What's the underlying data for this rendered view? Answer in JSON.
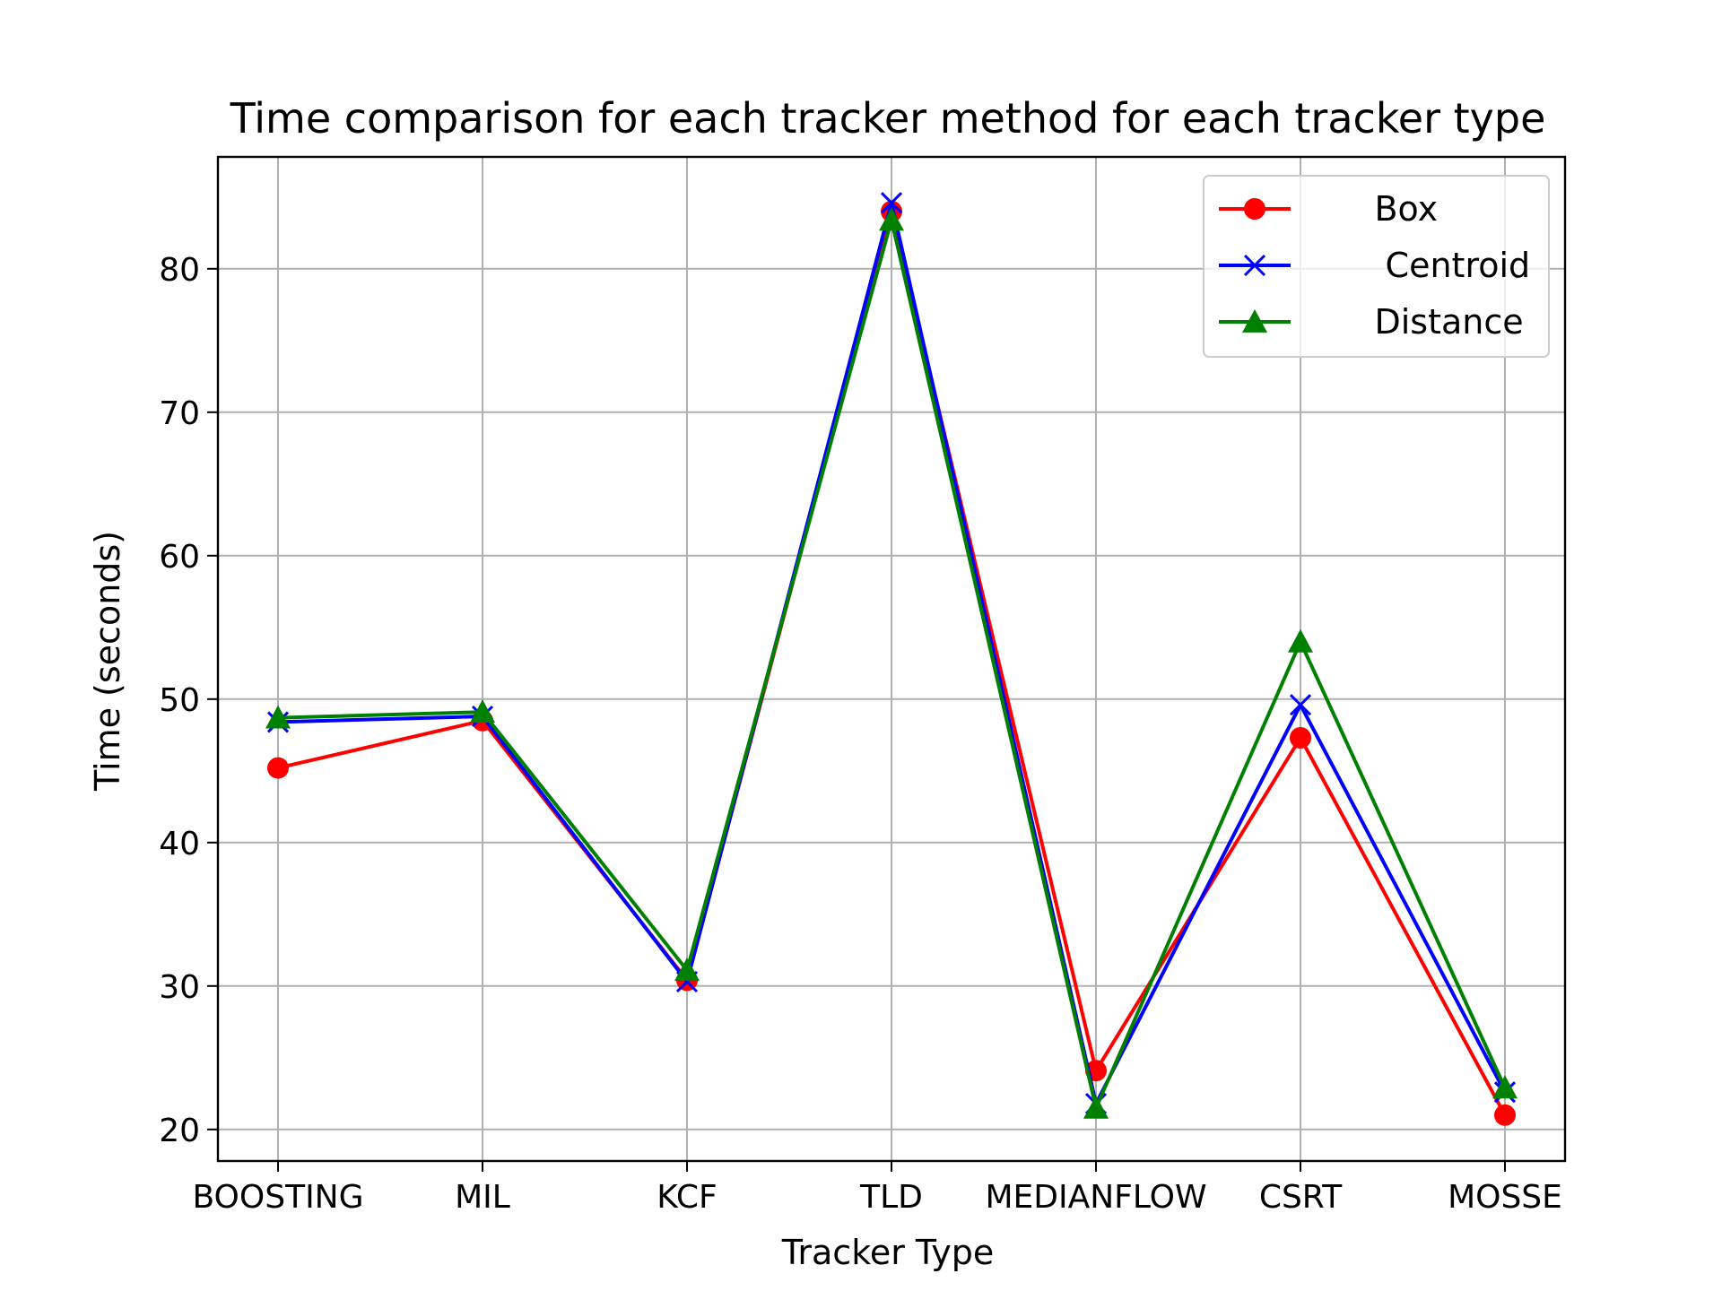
{
  "chart_data": {
    "type": "line",
    "title": "Time comparison for each tracker method for each tracker type",
    "xlabel": "Tracker Type",
    "ylabel": "Time (seconds)",
    "categories": [
      "BOOSTING",
      "MIL",
      "KCF",
      "TLD",
      "MEDIANFLOW",
      "CSRT",
      "MOSSE"
    ],
    "ylim": [
      17.8,
      87.8
    ],
    "yticks": [
      20,
      30,
      40,
      50,
      60,
      70,
      80
    ],
    "grid": true,
    "legend_position": "top-right",
    "series": [
      {
        "name": "Box",
        "legend_label": "      Box",
        "color": "#ff0000",
        "marker": "circle",
        "values": [
          45.2,
          48.5,
          30.4,
          84.0,
          24.1,
          47.3,
          21.0
        ]
      },
      {
        "name": "Centroid",
        "legend_label": "       Centroid",
        "color": "#0000ff",
        "marker": "x",
        "values": [
          48.4,
          48.8,
          30.3,
          84.6,
          21.8,
          49.6,
          22.6
        ]
      },
      {
        "name": "Distance",
        "legend_label": "      Distance",
        "color": "#008000",
        "marker": "triangle",
        "values": [
          48.7,
          49.1,
          31.1,
          83.4,
          21.5,
          54.0,
          22.9
        ]
      }
    ]
  }
}
